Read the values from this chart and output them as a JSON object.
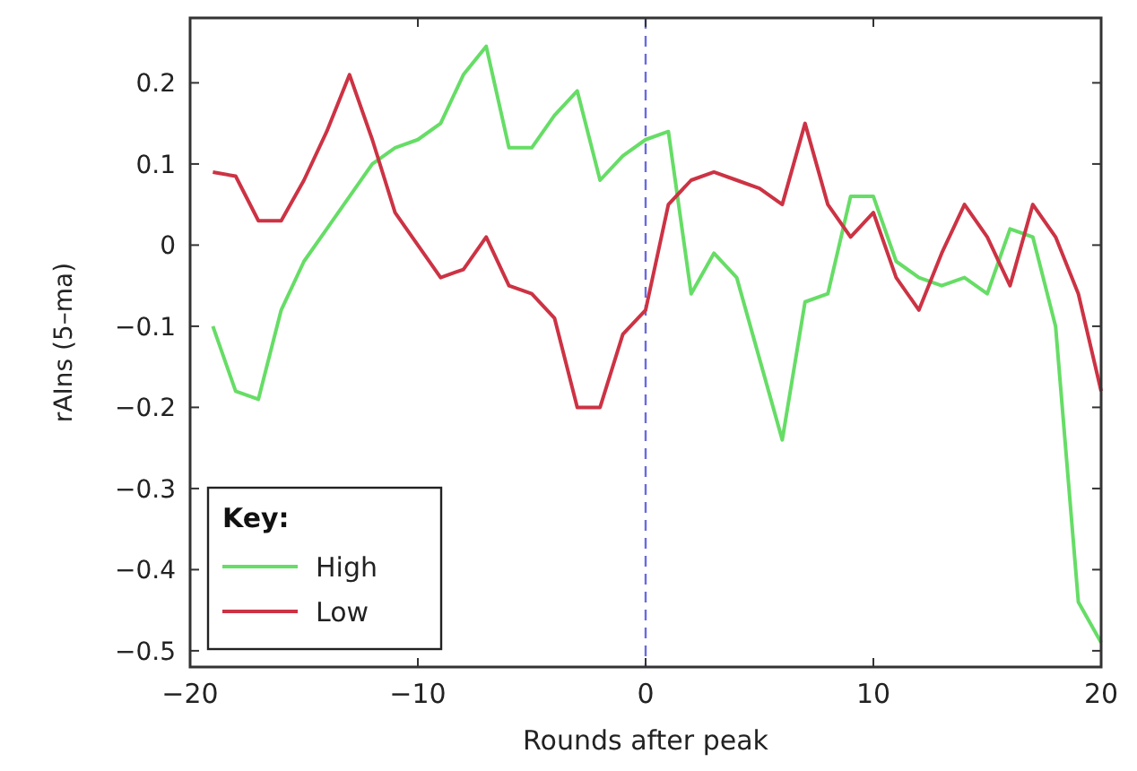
{
  "chart_data": {
    "type": "line",
    "xlabel": "Rounds after peak",
    "ylabel": "rAIns (5–ma)",
    "legend_title": "Key:",
    "legend": "bottom left",
    "grid": false,
    "line_style": "solid",
    "xlim": [
      -20,
      20
    ],
    "xticks": [
      -20,
      -10,
      0,
      10,
      20
    ],
    "ylim": [
      -0.52,
      0.28
    ],
    "yticks": [
      -0.5,
      -0.4,
      -0.3,
      -0.2,
      -0.1,
      0,
      0.1,
      0.2
    ],
    "x": [
      -19,
      -18,
      -17,
      -16,
      -15,
      -14,
      -13,
      -12,
      -11,
      -10,
      -9,
      -8,
      -7,
      -6,
      -5,
      -4,
      -3,
      -2,
      -1,
      0,
      1,
      2,
      3,
      4,
      5,
      6,
      7,
      8,
      9,
      10,
      11,
      12,
      13,
      14,
      15,
      16,
      17,
      18,
      19,
      20
    ],
    "ref_lines": [
      {
        "axis": "x",
        "value": 0,
        "color": "#6a6ae0",
        "line_style": "dashed"
      }
    ],
    "series": [
      {
        "name": "High",
        "color": "#66dd66",
        "values": [
          -0.1,
          -0.18,
          -0.19,
          -0.08,
          -0.02,
          0.02,
          0.06,
          0.1,
          0.12,
          0.13,
          0.15,
          0.21,
          0.245,
          0.12,
          0.12,
          0.16,
          0.19,
          0.08,
          0.11,
          0.13,
          0.14,
          -0.06,
          -0.01,
          -0.04,
          -0.14,
          -0.24,
          -0.07,
          -0.06,
          0.06,
          0.06,
          -0.02,
          -0.04,
          -0.05,
          -0.04,
          -0.06,
          0.02,
          0.01,
          -0.1,
          -0.44,
          -0.49
        ]
      },
      {
        "name": "Low",
        "color": "#cc3344",
        "values": [
          0.09,
          0.085,
          0.03,
          0.03,
          0.08,
          0.14,
          0.21,
          0.13,
          0.04,
          0.0,
          -0.04,
          -0.03,
          0.01,
          -0.05,
          -0.06,
          -0.09,
          -0.2,
          -0.2,
          -0.11,
          -0.08,
          0.05,
          0.08,
          0.09,
          0.08,
          0.07,
          0.05,
          0.15,
          0.05,
          0.01,
          0.04,
          -0.04,
          -0.08,
          -0.01,
          0.05,
          0.01,
          -0.05,
          0.05,
          0.01,
          -0.06,
          -0.18
        ]
      }
    ]
  }
}
